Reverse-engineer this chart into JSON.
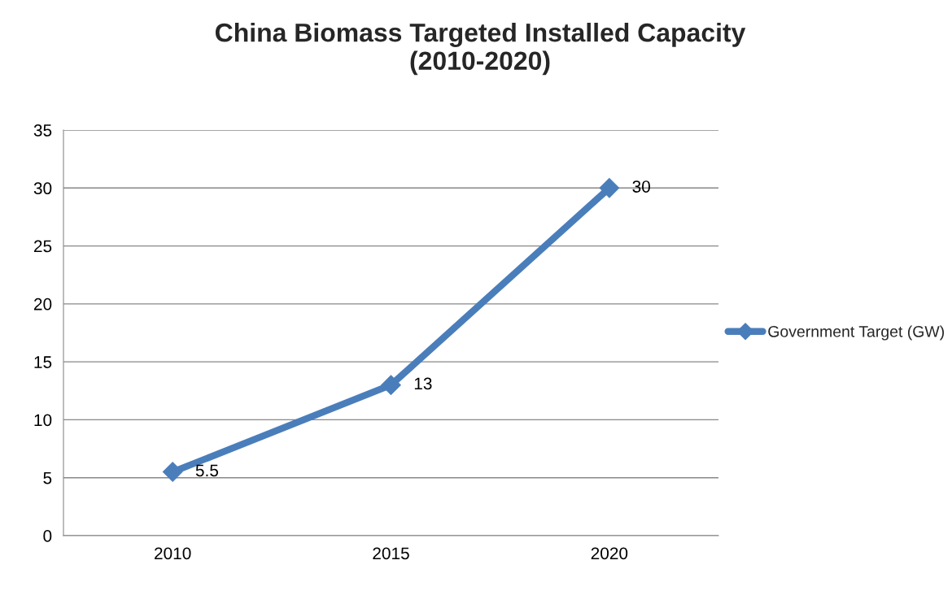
{
  "chart_data": {
    "type": "line",
    "title": "China Biomass Targeted Installed Capacity\n(2010-2020)",
    "categories": [
      "2010",
      "2015",
      "2020"
    ],
    "series": [
      {
        "name": "Government Target (GW)",
        "color": "#4a7ebb",
        "values": [
          5.5,
          13,
          30
        ]
      }
    ],
    "ylim": [
      0,
      35
    ],
    "yticks": [
      0,
      5,
      10,
      15,
      20,
      25,
      30,
      35
    ],
    "grid": "y",
    "legend": "right",
    "marker": "diamond",
    "line_style": "solid",
    "data_labels": true
  }
}
